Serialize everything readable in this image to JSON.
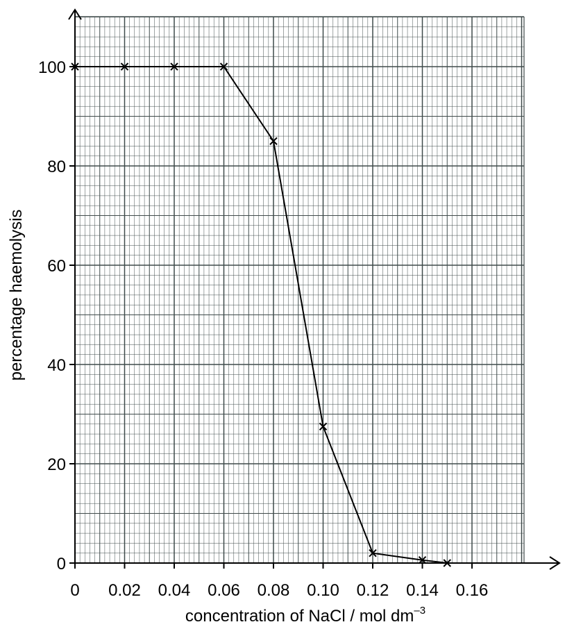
{
  "chart_data": {
    "type": "line",
    "xlabel": "concentration of NaCl / mol dm",
    "xlabel_sup": "–3",
    "ylabel": "percentage haemolysis",
    "xlim": [
      0,
      0.18
    ],
    "ylim": [
      0,
      110
    ],
    "x_ticks": [
      "0",
      "0.02",
      "0.04",
      "0.06",
      "0.08",
      "0.10",
      "0.12",
      "0.14",
      "0.16"
    ],
    "x_tick_values": [
      0,
      0.02,
      0.04,
      0.06,
      0.08,
      0.1,
      0.12,
      0.14,
      0.16
    ],
    "y_ticks": [
      "0",
      "20",
      "40",
      "60",
      "80",
      "100"
    ],
    "y_tick_values": [
      0,
      20,
      40,
      60,
      80,
      100
    ],
    "grid": true,
    "grid_minor_x": 0.002,
    "grid_minor_y": 2,
    "grid_color": "#3f4a4a",
    "marker": "x",
    "series": [
      {
        "x": [
          0,
          0.02,
          0.04,
          0.06,
          0.08,
          0.1,
          0.12,
          0.14,
          0.15
        ],
        "y": [
          100,
          100,
          100,
          100,
          85,
          27.5,
          2,
          0.6,
          0
        ]
      }
    ]
  }
}
